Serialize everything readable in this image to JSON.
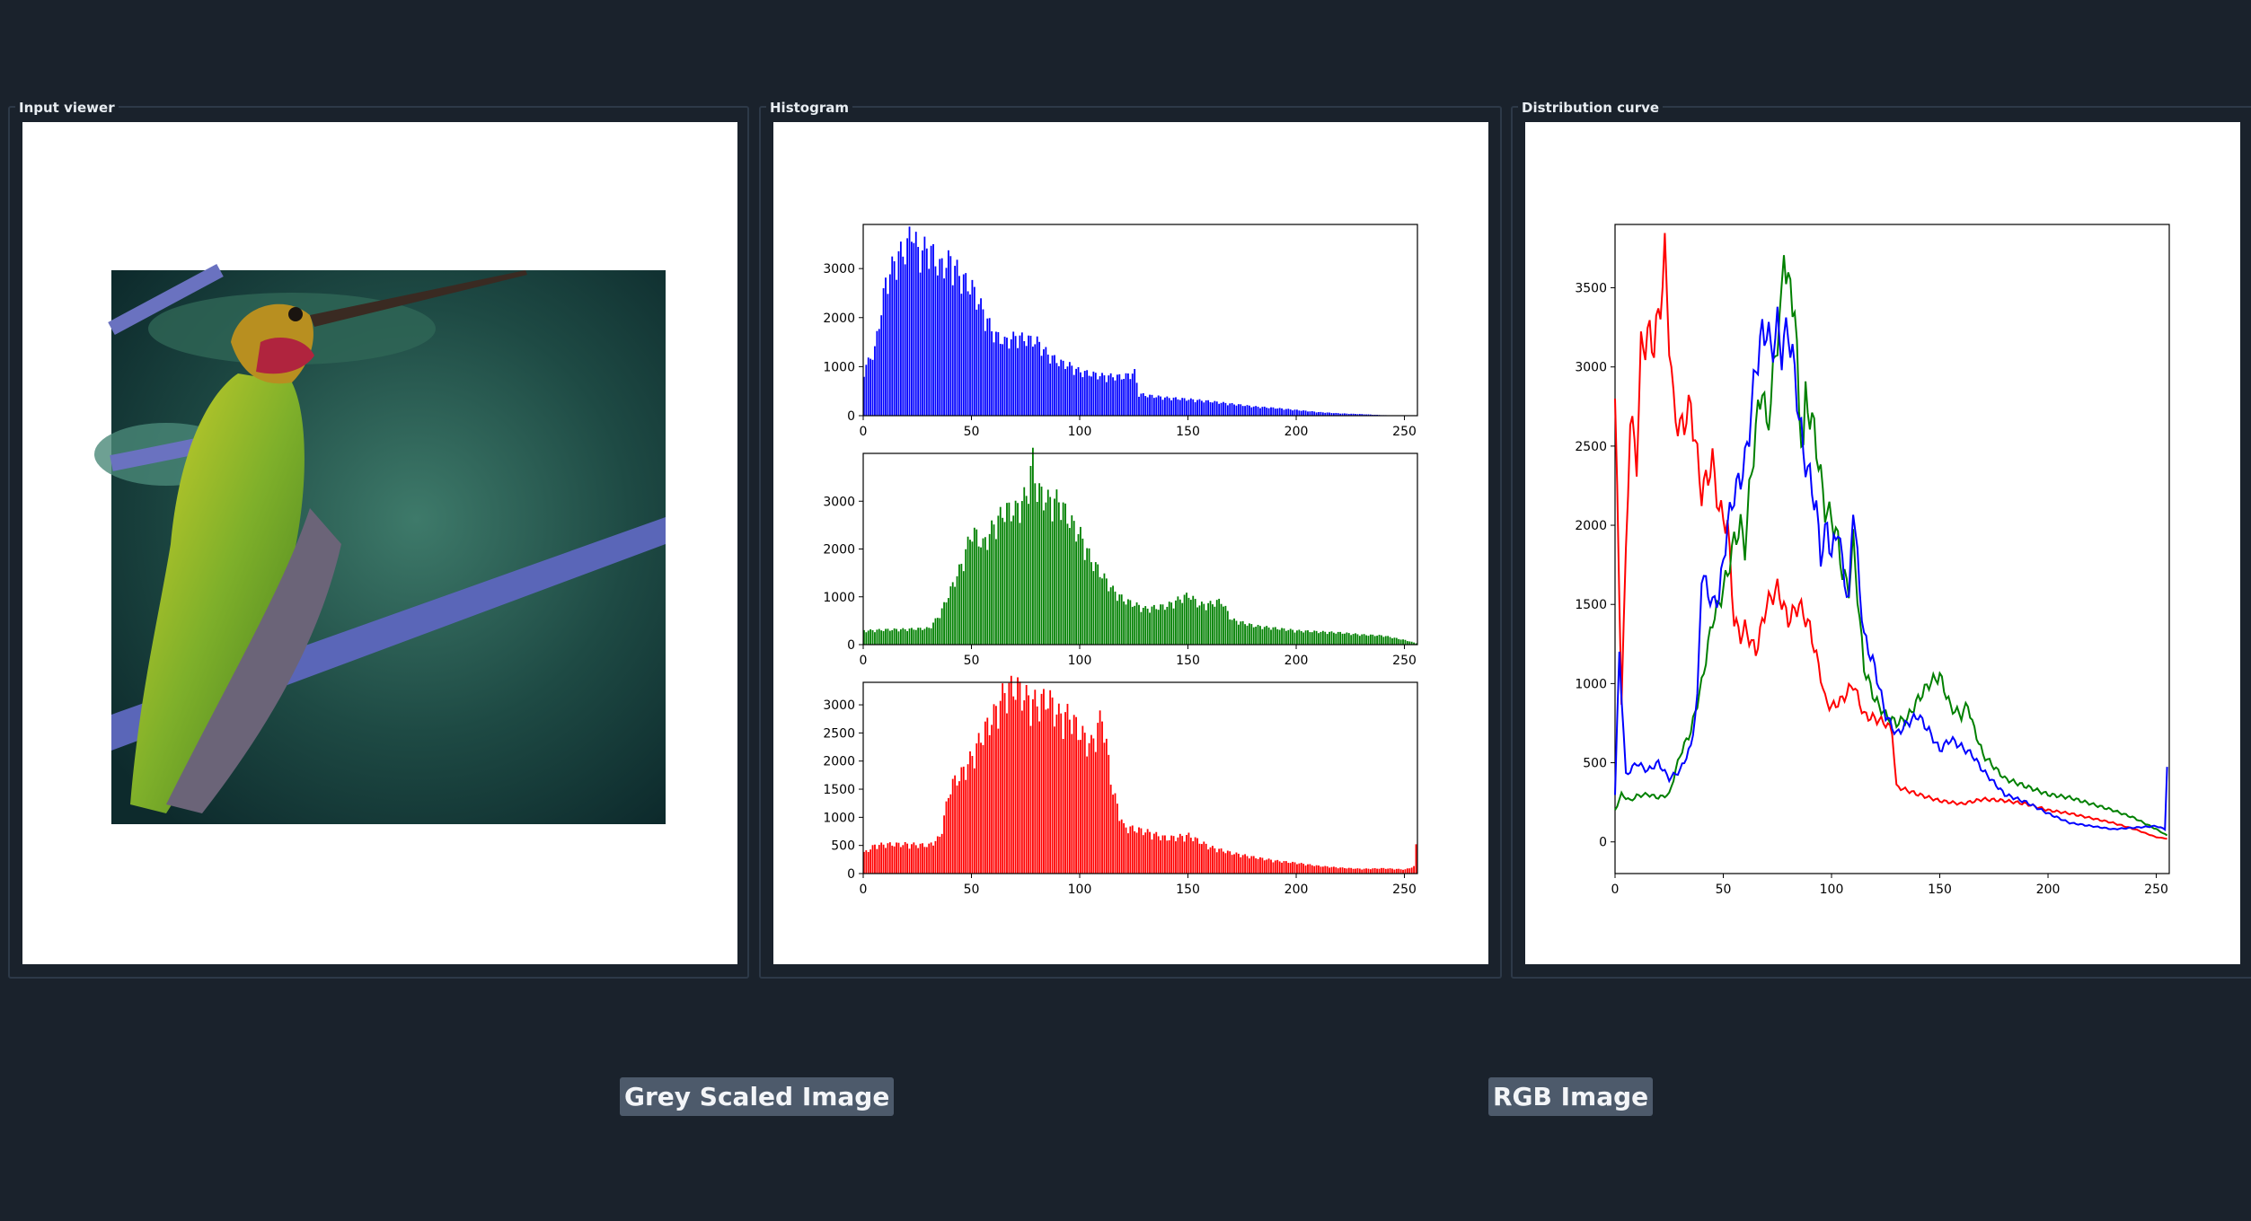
{
  "panels": {
    "input": {
      "title": "Input viewer",
      "image_alt": "hummingbird perched on a branch"
    },
    "histogram": {
      "title": "Histogram"
    },
    "distribution": {
      "title": "Distribution curve"
    }
  },
  "buttons": {
    "grey": "Grey Scaled Image",
    "rgb": "RGB Image"
  },
  "colors": {
    "background": "#1a222c",
    "panel_border": "#2d3948",
    "button_bg": "#4d5a6b",
    "blue": "#0000ff",
    "green": "#008000",
    "red": "#ff0000"
  },
  "chart_data": [
    {
      "type": "bar",
      "panel": "histogram",
      "series": [
        {
          "values": "blue"
        }
      ],
      "x": [
        0,
        5,
        10,
        15,
        20,
        22,
        25,
        30,
        35,
        40,
        45,
        50,
        55,
        60,
        65,
        70,
        75,
        80,
        85,
        90,
        95,
        100,
        110,
        120,
        125,
        127,
        130,
        140,
        150,
        160,
        170,
        180,
        190,
        200,
        210,
        220,
        230,
        240,
        255
      ],
      "y": [
        900,
        1300,
        2600,
        3100,
        3300,
        3700,
        3200,
        3300,
        2900,
        3050,
        2700,
        2500,
        2050,
        1600,
        1450,
        1550,
        1500,
        1450,
        1200,
        1050,
        980,
        860,
        780,
        760,
        850,
        430,
        400,
        350,
        320,
        280,
        230,
        180,
        150,
        110,
        70,
        45,
        30,
        10,
        0
      ],
      "xlim": [
        0,
        256
      ],
      "ylim": [
        0,
        3900
      ],
      "xticks": [
        0,
        50,
        100,
        150,
        200,
        250
      ],
      "yticks": [
        0,
        1000,
        2000,
        3000
      ],
      "color": "#0000ff"
    },
    {
      "type": "bar",
      "panel": "histogram",
      "series": [
        {
          "values": "green"
        }
      ],
      "x": [
        0,
        10,
        20,
        30,
        35,
        40,
        45,
        50,
        55,
        60,
        65,
        70,
        75,
        78,
        80,
        85,
        90,
        95,
        100,
        105,
        110,
        115,
        120,
        130,
        140,
        145,
        150,
        155,
        160,
        165,
        170,
        180,
        190,
        200,
        210,
        220,
        230,
        240,
        250,
        255
      ],
      "y": [
        280,
        300,
        310,
        330,
        600,
        1100,
        1600,
        2300,
        2000,
        2400,
        2700,
        2700,
        3000,
        3700,
        3100,
        2900,
        2900,
        2500,
        2200,
        1700,
        1400,
        1100,
        900,
        720,
        780,
        900,
        1000,
        800,
        820,
        880,
        500,
        380,
        330,
        280,
        260,
        240,
        200,
        180,
        90,
        30
      ],
      "xlim": [
        0,
        256
      ],
      "ylim": [
        0,
        4000
      ],
      "xticks": [
        0,
        50,
        100,
        150,
        200,
        250
      ],
      "yticks": [
        0,
        1000,
        2000,
        3000
      ],
      "color": "#008000"
    },
    {
      "type": "bar",
      "panel": "histogram",
      "series": [
        {
          "values": "red"
        }
      ],
      "x": [
        0,
        5,
        10,
        20,
        30,
        35,
        40,
        45,
        50,
        55,
        60,
        65,
        70,
        75,
        80,
        85,
        90,
        95,
        100,
        105,
        110,
        115,
        120,
        130,
        140,
        150,
        160,
        170,
        180,
        190,
        200,
        210,
        220,
        230,
        240,
        250,
        254,
        255
      ],
      "y": [
        350,
        480,
        500,
        500,
        480,
        620,
        1500,
        1700,
        2000,
        2400,
        2700,
        3100,
        3200,
        3000,
        2900,
        3000,
        2700,
        2700,
        2400,
        2200,
        2700,
        1400,
        800,
        720,
        600,
        650,
        450,
        350,
        280,
        220,
        180,
        130,
        100,
        80,
        90,
        70,
        120,
        480
      ],
      "xlim": [
        0,
        256
      ],
      "ylim": [
        0,
        3400
      ],
      "xticks": [
        0,
        50,
        100,
        150,
        200,
        250
      ],
      "yticks": [
        0,
        500,
        1000,
        1500,
        2000,
        2500,
        3000
      ],
      "color": "#ff0000"
    },
    {
      "type": "line",
      "panel": "distribution",
      "xlim": [
        0,
        256
      ],
      "ylim": [
        -200,
        3900
      ],
      "xticks": [
        0,
        50,
        100,
        150,
        200,
        250
      ],
      "yticks": [
        0,
        500,
        1000,
        1500,
        2000,
        2500,
        3000,
        3500
      ],
      "series": [
        {
          "color": "#ff0000",
          "x": [
            0,
            3,
            7,
            10,
            12,
            15,
            18,
            20,
            22,
            23,
            25,
            27,
            30,
            35,
            40,
            45,
            48,
            52,
            55,
            58,
            60,
            65,
            70,
            75,
            80,
            85,
            90,
            95,
            97,
            100,
            105,
            110,
            115,
            120,
            125,
            128,
            130,
            140,
            150,
            160,
            170,
            180,
            190,
            200,
            210,
            220,
            230,
            240,
            250,
            255
          ],
          "y": [
            2800,
            900,
            2700,
            2400,
            3100,
            3200,
            3150,
            3300,
            3550,
            3700,
            3200,
            2750,
            2600,
            2750,
            2200,
            2400,
            2100,
            2000,
            1400,
            1300,
            1350,
            1200,
            1500,
            1600,
            1400,
            1500,
            1350,
            1050,
            900,
            850,
            900,
            1000,
            800,
            780,
            750,
            700,
            350,
            300,
            260,
            240,
            270,
            260,
            240,
            200,
            180,
            150,
            120,
            80,
            30,
            20
          ]
        },
        {
          "color": "#008000",
          "x": [
            0,
            3,
            7,
            10,
            15,
            20,
            25,
            30,
            35,
            40,
            45,
            48,
            52,
            55,
            58,
            60,
            62,
            65,
            68,
            70,
            72,
            75,
            77,
            78,
            80,
            83,
            85,
            87,
            88,
            90,
            92,
            95,
            97,
            100,
            103,
            105,
            108,
            110,
            113,
            115,
            120,
            125,
            130,
            135,
            140,
            145,
            150,
            155,
            160,
            163,
            165,
            170,
            180,
            190,
            200,
            210,
            220,
            230,
            240,
            250,
            255
          ],
          "y": [
            200,
            300,
            260,
            290,
            300,
            280,
            300,
            550,
            700,
            1000,
            1400,
            1500,
            1700,
            1900,
            2000,
            1850,
            2200,
            2600,
            2900,
            2600,
            2800,
            3200,
            3400,
            3780,
            3500,
            3400,
            2700,
            2500,
            2800,
            2700,
            2600,
            2300,
            2100,
            2050,
            1900,
            1700,
            1600,
            1900,
            1400,
            1100,
            900,
            800,
            750,
            780,
            900,
            1000,
            1050,
            850,
            800,
            870,
            750,
            550,
            400,
            350,
            300,
            280,
            240,
            200,
            150,
            80,
            40
          ]
        },
        {
          "color": "#0000ff",
          "x": [
            0,
            2,
            5,
            10,
            15,
            20,
            25,
            30,
            35,
            38,
            40,
            45,
            48,
            52,
            55,
            58,
            60,
            62,
            65,
            68,
            70,
            72,
            75,
            77,
            80,
            83,
            85,
            87,
            90,
            93,
            95,
            98,
            100,
            103,
            105,
            108,
            110,
            113,
            115,
            120,
            125,
            130,
            135,
            140,
            145,
            150,
            155,
            160,
            165,
            170,
            180,
            190,
            200,
            210,
            220,
            230,
            240,
            250,
            254,
            255
          ],
          "y": [
            300,
            1200,
            420,
            500,
            450,
            500,
            400,
            450,
            600,
            900,
            1700,
            1500,
            1550,
            2000,
            2200,
            2300,
            2400,
            2600,
            3000,
            3200,
            3250,
            3100,
            3250,
            3100,
            3250,
            2950,
            2700,
            2450,
            2300,
            2100,
            1800,
            2000,
            1800,
            2000,
            1750,
            1500,
            2150,
            1600,
            1300,
            1100,
            800,
            680,
            750,
            800,
            700,
            580,
            650,
            600,
            550,
            450,
            300,
            250,
            180,
            120,
            100,
            80,
            90,
            100,
            80,
            480
          ]
        }
      ]
    }
  ]
}
